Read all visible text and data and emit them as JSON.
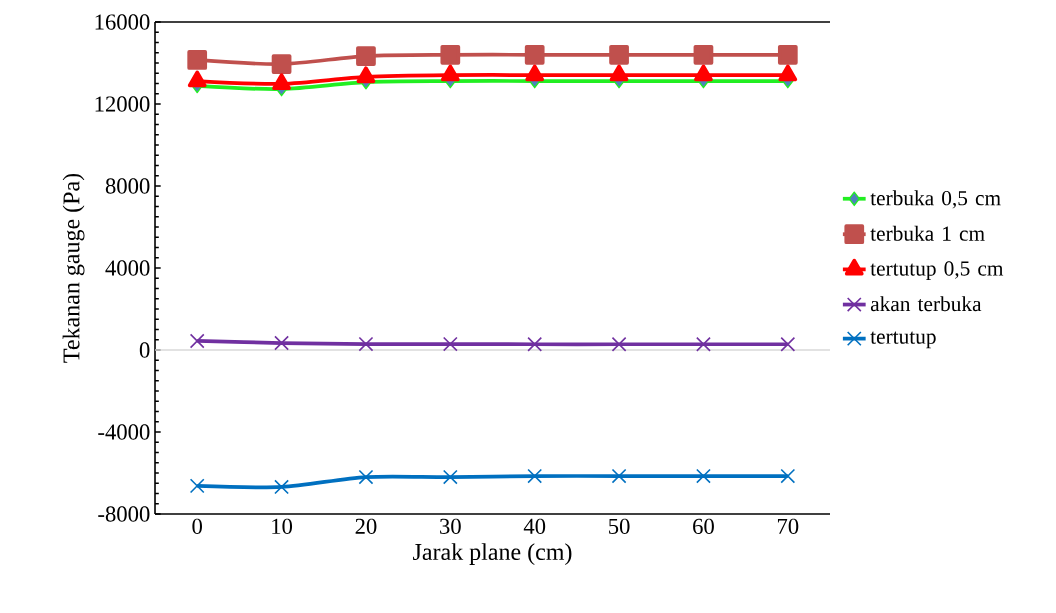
{
  "chart_data": {
    "type": "line",
    "xlabel": "Jarak plane (cm)",
    "ylabel": "Tekanan gauge (Pa)",
    "x": [
      0,
      10,
      20,
      30,
      40,
      50,
      60,
      70
    ],
    "xlim": [
      -5,
      75
    ],
    "xticks": [
      0,
      10,
      20,
      30,
      40,
      50,
      60,
      70
    ],
    "ylim": [
      -8000,
      16000
    ],
    "yticks": [
      -8000,
      -4000,
      0,
      4000,
      8000,
      12000,
      16000
    ],
    "grid": false,
    "legend": "right",
    "ref_lines": [
      {
        "axis": "y",
        "value": 0,
        "color": "#d9d9d9"
      }
    ],
    "series": [
      {
        "name": "terbuka 0,5 cm",
        "color": "#22ee22",
        "marker": "diamond",
        "values": [
          12880,
          12730,
          13070,
          13120,
          13120,
          13120,
          13120,
          13120
        ]
      },
      {
        "name": "terbuka 1 cm",
        "color": "#c0504d",
        "marker": "square",
        "values": [
          14150,
          13950,
          14340,
          14400,
          14400,
          14400,
          14400,
          14400
        ]
      },
      {
        "name": "tertutup 0,5 cm",
        "color": "#ff0000",
        "marker": "triangle",
        "values": [
          13120,
          12980,
          13320,
          13410,
          13410,
          13410,
          13410,
          13410
        ]
      },
      {
        "name": "akan terbuka",
        "color": "#7030a0",
        "marker": "cross",
        "values": [
          440,
          340,
          290,
          290,
          280,
          280,
          280,
          280
        ]
      },
      {
        "name": "tertutup",
        "color": "#0070c0",
        "marker": "cross",
        "values": [
          -6630,
          -6680,
          -6200,
          -6200,
          -6150,
          -6150,
          -6150,
          -6150
        ]
      }
    ]
  }
}
